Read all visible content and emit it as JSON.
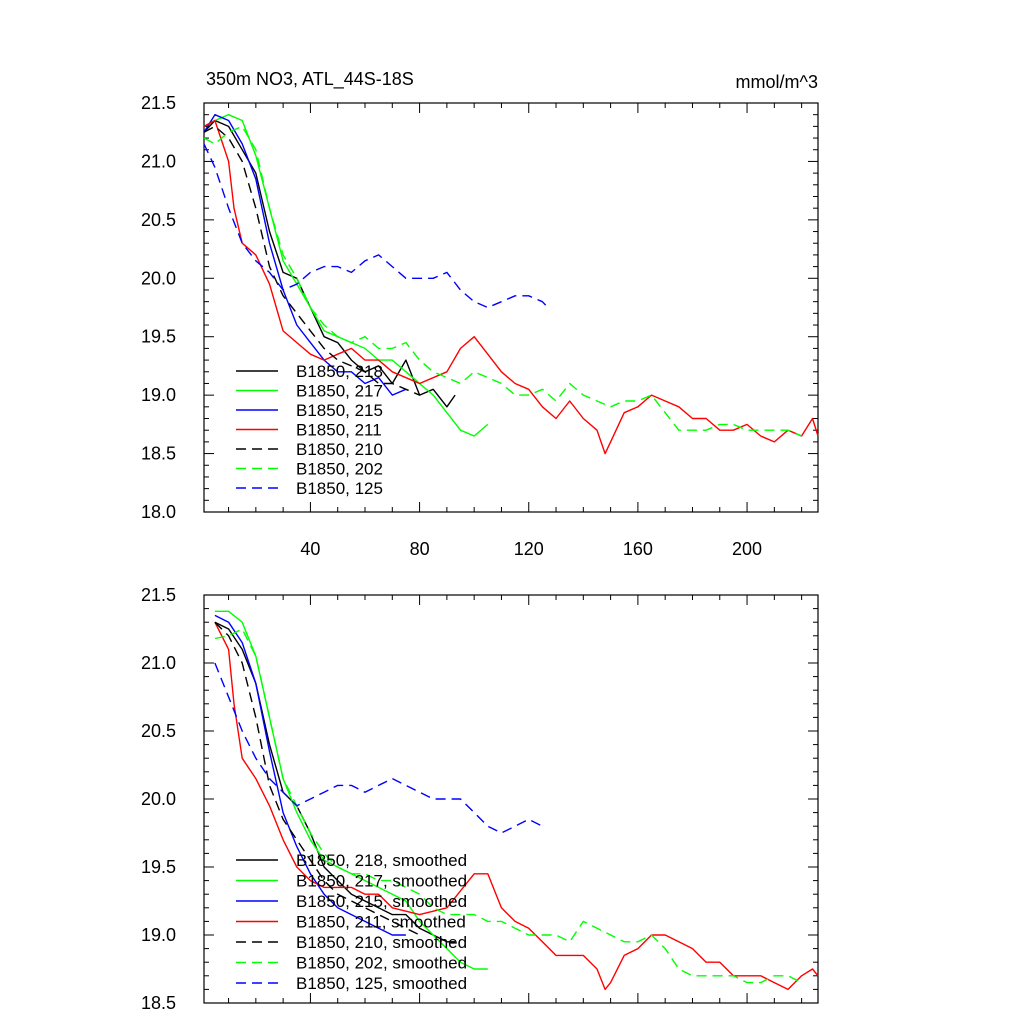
{
  "chart_data": [
    {
      "type": "line",
      "title": "350m NO3, ATL_44S-18S",
      "units": "mmol/m^3",
      "xlabel": "",
      "ylabel": "",
      "xlim": [
        1,
        226
      ],
      "ylim": [
        18.0,
        21.5
      ],
      "xticks": [
        40,
        80,
        120,
        160,
        200
      ],
      "yticks": [
        18.0,
        18.5,
        19.0,
        19.5,
        20.0,
        20.5,
        21.0,
        21.5
      ],
      "ytick_labels": [
        "18.0",
        "18.5",
        "19.0",
        "19.5",
        "20.0",
        "20.5",
        "21.0",
        "21.5"
      ],
      "xtick_labels": [
        "40",
        "80",
        "120",
        "160",
        "200"
      ],
      "legend_position": "lower-left",
      "series": [
        {
          "name": "B1850, 218",
          "color": "#000000",
          "dash": "solid",
          "x": [
            1,
            5,
            10,
            15,
            20,
            25,
            30,
            35,
            40,
            45,
            50,
            55,
            60,
            65,
            70,
            75,
            80,
            85,
            90,
            93
          ],
          "values": [
            21.25,
            21.35,
            21.3,
            21.1,
            20.9,
            20.4,
            20.05,
            20.0,
            19.75,
            19.5,
            19.45,
            19.3,
            19.2,
            19.25,
            19.1,
            19.3,
            19.0,
            19.05,
            18.9,
            19.0
          ]
        },
        {
          "name": "B1850, 217",
          "color": "#00ff00",
          "dash": "solid",
          "x": [
            1,
            5,
            10,
            15,
            20,
            25,
            30,
            35,
            40,
            45,
            50,
            55,
            60,
            65,
            70,
            75,
            80,
            85,
            90,
            95,
            100,
            105
          ],
          "values": [
            21.3,
            21.35,
            21.4,
            21.35,
            21.05,
            20.6,
            20.15,
            19.95,
            19.75,
            19.55,
            19.5,
            19.45,
            19.4,
            19.3,
            19.3,
            19.2,
            19.1,
            19.0,
            18.85,
            18.7,
            18.65,
            18.75
          ]
        },
        {
          "name": "B1850, 215",
          "color": "#0000ff",
          "dash": "solid",
          "x": [
            1,
            5,
            10,
            15,
            20,
            25,
            30,
            35,
            40,
            45,
            50,
            55,
            60,
            65,
            70,
            75
          ],
          "values": [
            21.25,
            21.4,
            21.35,
            21.15,
            20.85,
            20.3,
            19.9,
            19.6,
            19.45,
            19.3,
            19.2,
            19.2,
            19.1,
            19.15,
            19.0,
            19.05
          ]
        },
        {
          "name": "B1850, 211",
          "color": "#ff0000",
          "dash": "solid",
          "x": [
            1,
            5,
            10,
            12,
            15,
            20,
            25,
            30,
            35,
            40,
            45,
            50,
            55,
            60,
            65,
            70,
            80,
            90,
            95,
            100,
            105,
            110,
            115,
            120,
            125,
            130,
            135,
            140,
            145,
            148,
            150,
            155,
            160,
            165,
            170,
            175,
            180,
            185,
            190,
            195,
            200,
            205,
            210,
            215,
            220,
            224,
            226
          ],
          "values": [
            21.3,
            21.35,
            21.0,
            20.6,
            20.3,
            20.2,
            19.95,
            19.55,
            19.45,
            19.35,
            19.3,
            19.35,
            19.4,
            19.3,
            19.3,
            19.2,
            19.1,
            19.2,
            19.4,
            19.5,
            19.35,
            19.2,
            19.1,
            19.05,
            18.9,
            18.8,
            18.95,
            18.8,
            18.7,
            18.5,
            18.6,
            18.85,
            18.9,
            19.0,
            18.95,
            18.9,
            18.8,
            18.8,
            18.7,
            18.7,
            18.75,
            18.65,
            18.6,
            18.7,
            18.65,
            18.8,
            18.65
          ]
        },
        {
          "name": "B1850, 210",
          "color": "#000000",
          "dash": "dash",
          "x": [
            1,
            5,
            10,
            15,
            20,
            25,
            30,
            35,
            40,
            45,
            50,
            55,
            60,
            65,
            70,
            75,
            80
          ],
          "values": [
            21.25,
            21.3,
            21.2,
            21.0,
            20.6,
            20.1,
            19.85,
            19.7,
            19.55,
            19.4,
            19.3,
            19.25,
            19.2,
            19.1,
            19.1,
            19.05,
            19.0
          ]
        },
        {
          "name": "B1850, 202",
          "color": "#00ff00",
          "dash": "dash",
          "x": [
            1,
            5,
            10,
            15,
            20,
            25,
            30,
            35,
            40,
            45,
            50,
            55,
            60,
            65,
            70,
            75,
            80,
            85,
            90,
            95,
            100,
            105,
            110,
            115,
            120,
            125,
            130,
            135,
            140,
            145,
            150,
            155,
            160,
            165,
            170,
            175,
            180,
            185,
            190,
            195,
            200,
            205,
            210,
            215,
            220
          ],
          "values": [
            21.2,
            21.15,
            21.25,
            21.3,
            21.1,
            20.6,
            20.2,
            20.0,
            19.75,
            19.6,
            19.5,
            19.45,
            19.5,
            19.4,
            19.4,
            19.45,
            19.3,
            19.2,
            19.15,
            19.1,
            19.2,
            19.15,
            19.1,
            19.0,
            19.0,
            19.05,
            18.95,
            19.1,
            19.0,
            18.95,
            18.9,
            18.95,
            18.95,
            19.0,
            18.85,
            18.7,
            18.7,
            18.7,
            18.75,
            18.75,
            18.7,
            18.7,
            18.7,
            18.7,
            18.65
          ]
        },
        {
          "name": "B1850, 125",
          "color": "#0000ff",
          "dash": "dash",
          "x": [
            1,
            5,
            10,
            15,
            20,
            25,
            30,
            35,
            40,
            45,
            50,
            55,
            60,
            65,
            70,
            75,
            80,
            85,
            90,
            95,
            100,
            105,
            110,
            115,
            120,
            125,
            127
          ],
          "values": [
            21.15,
            20.95,
            20.6,
            20.3,
            20.15,
            20.05,
            19.9,
            19.95,
            20.05,
            20.1,
            20.1,
            20.05,
            20.15,
            20.2,
            20.1,
            20.0,
            20.0,
            20.0,
            20.05,
            19.9,
            19.8,
            19.75,
            19.8,
            19.85,
            19.85,
            19.8,
            19.75
          ]
        }
      ]
    },
    {
      "type": "line",
      "title": "",
      "xlabel": "",
      "ylabel": "",
      "xlim": [
        1,
        226
      ],
      "ylim": [
        18.5,
        21.5
      ],
      "xticks": [
        40,
        80,
        120,
        160,
        200
      ],
      "yticks": [
        18.5,
        19.0,
        19.5,
        20.0,
        20.5,
        21.0,
        21.5
      ],
      "ytick_labels": [
        "18.5",
        "19.0",
        "19.5",
        "20.0",
        "20.5",
        "21.0",
        "21.5"
      ],
      "legend_position": "lower-left",
      "series": [
        {
          "name": "B1850, 218, smoothed",
          "color": "#000000",
          "dash": "solid",
          "x": [
            5,
            10,
            15,
            20,
            25,
            30,
            35,
            40,
            45,
            50,
            55,
            60,
            65,
            70,
            75,
            80,
            85,
            90,
            93
          ],
          "values": [
            21.3,
            21.25,
            21.1,
            20.85,
            20.4,
            20.05,
            19.95,
            19.75,
            19.5,
            19.4,
            19.3,
            19.25,
            19.2,
            19.15,
            19.15,
            19.05,
            19.0,
            18.95,
            18.95
          ]
        },
        {
          "name": "B1850, 217, smoothed",
          "color": "#00ff00",
          "dash": "solid",
          "x": [
            5,
            10,
            15,
            20,
            25,
            30,
            35,
            40,
            45,
            50,
            55,
            60,
            65,
            70,
            75,
            80,
            85,
            90,
            95,
            100,
            105
          ],
          "values": [
            21.38,
            21.38,
            21.3,
            21.05,
            20.6,
            20.15,
            19.9,
            19.7,
            19.55,
            19.5,
            19.45,
            19.4,
            19.35,
            19.3,
            19.25,
            19.1,
            19.0,
            18.9,
            18.8,
            18.75,
            18.75
          ]
        },
        {
          "name": "B1850, 215, smoothed",
          "color": "#0000ff",
          "dash": "solid",
          "x": [
            5,
            10,
            15,
            20,
            25,
            30,
            35,
            40,
            45,
            50,
            55,
            60,
            65,
            70,
            75
          ],
          "values": [
            21.35,
            21.3,
            21.15,
            20.85,
            20.35,
            19.9,
            19.65,
            19.45,
            19.3,
            19.2,
            19.15,
            19.1,
            19.05,
            19.0,
            19.0
          ]
        },
        {
          "name": "B1850, 211, smoothed",
          "color": "#ff0000",
          "dash": "solid",
          "x": [
            5,
            10,
            12,
            15,
            20,
            25,
            30,
            35,
            40,
            45,
            50,
            55,
            60,
            65,
            70,
            80,
            90,
            100,
            105,
            110,
            115,
            120,
            125,
            130,
            135,
            140,
            145,
            148,
            150,
            155,
            160,
            165,
            170,
            175,
            180,
            185,
            190,
            195,
            200,
            205,
            210,
            215,
            220,
            224,
            226
          ],
          "values": [
            21.3,
            21.1,
            20.7,
            20.3,
            20.15,
            19.95,
            19.7,
            19.5,
            19.4,
            19.35,
            19.35,
            19.35,
            19.3,
            19.3,
            19.2,
            19.15,
            19.2,
            19.45,
            19.45,
            19.2,
            19.1,
            19.05,
            18.95,
            18.85,
            18.85,
            18.85,
            18.75,
            18.6,
            18.65,
            18.85,
            18.9,
            19.0,
            19.0,
            18.95,
            18.9,
            18.8,
            18.8,
            18.7,
            18.7,
            18.7,
            18.65,
            18.6,
            18.7,
            18.75,
            18.7
          ]
        },
        {
          "name": "B1850, 210, smoothed",
          "color": "#000000",
          "dash": "dash",
          "x": [
            5,
            10,
            15,
            20,
            25,
            30,
            35,
            40,
            45,
            50,
            55,
            60,
            65,
            70,
            75,
            80
          ],
          "values": [
            21.3,
            21.2,
            21.0,
            20.6,
            20.1,
            19.85,
            19.7,
            19.55,
            19.4,
            19.3,
            19.25,
            19.2,
            19.15,
            19.1,
            19.05,
            19.0
          ]
        },
        {
          "name": "B1850, 202, smoothed",
          "color": "#00ff00",
          "dash": "dash",
          "x": [
            5,
            10,
            15,
            20,
            25,
            30,
            35,
            40,
            45,
            50,
            55,
            60,
            65,
            70,
            75,
            80,
            85,
            90,
            95,
            100,
            105,
            110,
            115,
            120,
            125,
            130,
            135,
            140,
            145,
            150,
            155,
            160,
            165,
            170,
            175,
            180,
            185,
            190,
            195,
            200,
            205,
            210,
            215,
            220
          ],
          "values": [
            21.18,
            21.2,
            21.25,
            21.05,
            20.6,
            20.15,
            19.95,
            19.75,
            19.6,
            19.5,
            19.45,
            19.45,
            19.4,
            19.4,
            19.35,
            19.3,
            19.2,
            19.15,
            19.15,
            19.15,
            19.1,
            19.1,
            19.05,
            19.0,
            19.0,
            19.0,
            18.95,
            19.1,
            19.05,
            19.0,
            18.95,
            18.95,
            19.0,
            18.9,
            18.75,
            18.7,
            18.7,
            18.7,
            18.7,
            18.65,
            18.65,
            18.7,
            18.7,
            18.65
          ]
        },
        {
          "name": "B1850, 125, smoothed",
          "color": "#0000ff",
          "dash": "dash",
          "x": [
            5,
            10,
            15,
            20,
            25,
            30,
            35,
            40,
            45,
            50,
            55,
            60,
            65,
            70,
            75,
            80,
            85,
            90,
            95,
            100,
            105,
            110,
            115,
            120,
            125
          ],
          "values": [
            21.0,
            20.75,
            20.5,
            20.3,
            20.15,
            20.05,
            19.95,
            20.0,
            20.05,
            20.1,
            20.1,
            20.05,
            20.1,
            20.15,
            20.1,
            20.05,
            20.0,
            20.0,
            20.0,
            19.9,
            19.8,
            19.75,
            19.8,
            19.85,
            19.8
          ]
        }
      ]
    }
  ]
}
